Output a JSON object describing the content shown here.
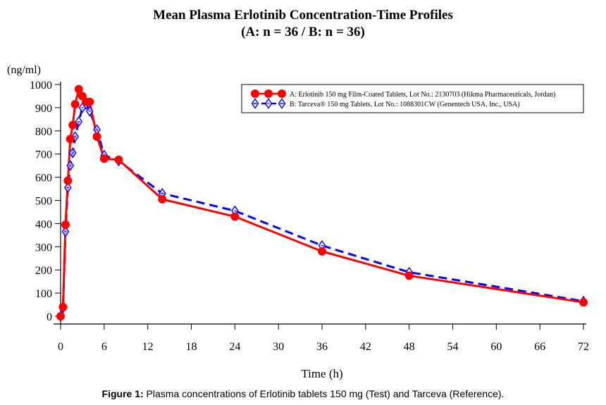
{
  "figure": {
    "title_line1": "Mean Plasma Erlotinib Concentration-Time Profiles",
    "title_line2": "(A: n = 36 / B: n = 36)",
    "caption_label": "Figure 1:",
    "caption_text": " Plasma concentrations of Erlotinib tablets 150 mg (Test) and Tarceva (Reference)."
  },
  "chart_data": {
    "type": "line",
    "xlabel": "Time (h)",
    "ylabel": "(ng/ml)",
    "xlim": [
      0,
      72
    ],
    "ylim": [
      0,
      1000
    ],
    "xticks": [
      0,
      6,
      12,
      18,
      24,
      30,
      36,
      42,
      48,
      54,
      60,
      66,
      72
    ],
    "yticks": [
      0,
      100,
      200,
      300,
      400,
      500,
      600,
      700,
      800,
      900,
      1000
    ],
    "grid": false,
    "legend_position": "top-right",
    "series": [
      {
        "name": "A: Erlotinib 150 mg Film-Coated Tablets, Lot No.: 2130703 (Hikma Pharmaceuticals, Jordan)",
        "color": "#ff0000",
        "line_style": "solid",
        "marker": "filled-circle",
        "x": [
          0,
          0.33,
          0.67,
          1,
          1.33,
          1.67,
          2,
          2.5,
          3,
          3.5,
          4,
          5,
          6,
          8,
          14,
          24,
          36,
          48,
          72
        ],
        "y": [
          0,
          40,
          395,
          585,
          765,
          825,
          915,
          980,
          950,
          925,
          925,
          775,
          680,
          675,
          505,
          430,
          280,
          175,
          60
        ]
      },
      {
        "name": "B: Tarceva® 150 mg Tablets, Lot No.: 1088301CW (Genentech USA, Inc., USA)",
        "color": "#0000ff",
        "line_style": "dashed",
        "marker": "open-diamond",
        "x": [
          0,
          0.33,
          0.67,
          1,
          1.33,
          1.67,
          2,
          2.5,
          3,
          3.5,
          4,
          5,
          6,
          8,
          14,
          24,
          36,
          48,
          72
        ],
        "y": [
          0,
          35,
          365,
          555,
          650,
          705,
          775,
          840,
          900,
          915,
          885,
          805,
          695,
          670,
          530,
          455,
          305,
          190,
          65
        ]
      }
    ]
  }
}
